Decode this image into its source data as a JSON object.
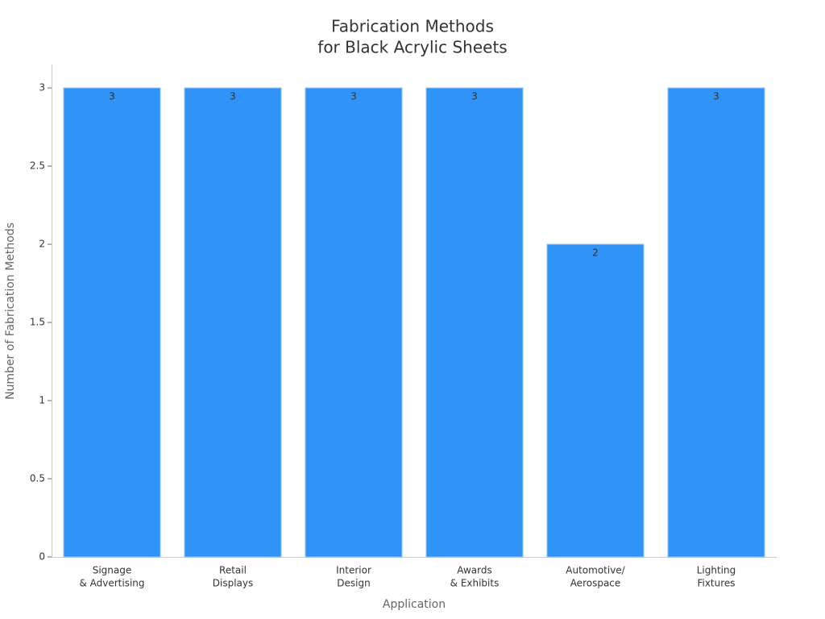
{
  "chart_data": {
    "type": "bar",
    "title": [
      "Fabrication Methods",
      "for Black Acrylic Sheets"
    ],
    "x_label": "Application",
    "y_label": "Number of Fabrication Methods",
    "categories": [
      [
        "Signage",
        "& Advertising"
      ],
      [
        "Retail",
        "Displays"
      ],
      [
        "Interior",
        "Design"
      ],
      [
        "Awards",
        "& Exhibits"
      ],
      [
        "Automotive/",
        "Aerospace"
      ],
      [
        "Lighting",
        "Fixtures"
      ]
    ],
    "values": [
      3,
      3,
      3,
      3,
      2,
      3
    ],
    "color": "#2f93f8",
    "ylim": [
      0,
      3.15
    ],
    "yticks": [
      0,
      0.5,
      1,
      1.5,
      2,
      2.5,
      3
    ],
    "grid": false
  }
}
